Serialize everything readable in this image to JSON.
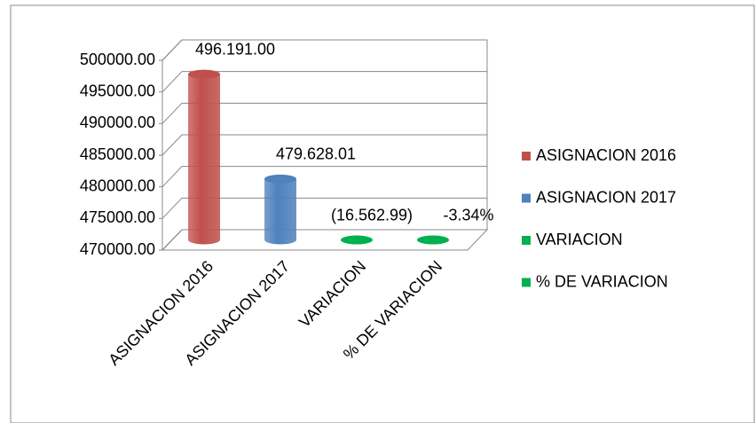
{
  "chart_data": {
    "type": "bar3d",
    "categories": [
      "ASIGNACION 2016",
      "ASIGNACION 2017",
      "VARIACION",
      "% DE VARIACION"
    ],
    "series": [
      {
        "name": "ASIGNACION 2016",
        "color": "#c0504d",
        "values": [
          496191,
          null,
          null,
          null
        ],
        "value_labels": [
          "496.191.00",
          null,
          null,
          null
        ]
      },
      {
        "name": "ASIGNACION 2017",
        "color": "#4f81bd",
        "values": [
          null,
          479628.01,
          null,
          null
        ],
        "value_labels": [
          null,
          "479.628.01",
          null,
          null
        ]
      },
      {
        "name": "VARIACION",
        "color": "#00b050",
        "values": [
          null,
          null,
          -16562.99,
          null
        ],
        "value_labels": [
          null,
          null,
          "(16.562.99)",
          null
        ]
      },
      {
        "name": "% DE VARIACION",
        "color": "#00b050",
        "values": [
          null,
          null,
          null,
          -3.34
        ],
        "value_labels": [
          null,
          null,
          null,
          "-3.34%"
        ]
      }
    ],
    "ylim": [
      470000,
      500000
    ],
    "yticks": [
      {
        "value": 470000,
        "label": "470000.00"
      },
      {
        "value": 475000,
        "label": "475000.00"
      },
      {
        "value": 480000,
        "label": "480000.00"
      },
      {
        "value": 485000,
        "label": "485000.00"
      },
      {
        "value": 490000,
        "label": "490000.00"
      },
      {
        "value": 495000,
        "label": "495000.00"
      },
      {
        "value": 500000,
        "label": "500000.00"
      }
    ],
    "grid": true,
    "legend": "right"
  }
}
